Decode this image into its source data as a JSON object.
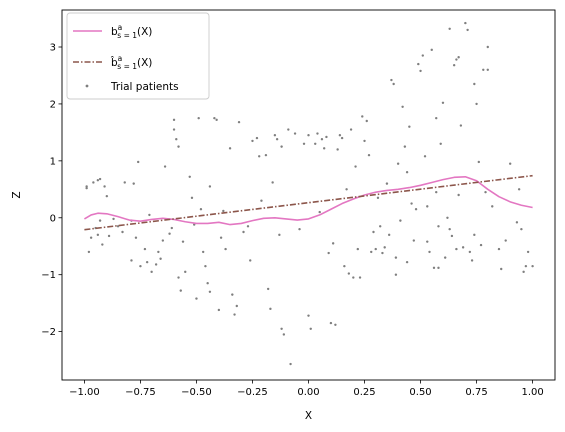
{
  "chart_data": {
    "type": "line",
    "title": "",
    "xlabel": "X",
    "ylabel": "Z",
    "xlim": [
      -1.1,
      1.1
    ],
    "ylim": [
      -2.85,
      3.65
    ],
    "xticks": [
      -1.0,
      -0.75,
      -0.5,
      -0.25,
      0.0,
      0.25,
      0.5,
      0.75,
      1.0
    ],
    "xtick_labels": [
      "−1.00",
      "−0.75",
      "−0.50",
      "−0.25",
      "0.00",
      "0.25",
      "0.50",
      "0.75",
      "1.00"
    ],
    "yticks": [
      -2,
      -1,
      0,
      1,
      2,
      3
    ],
    "ytick_labels": [
      "−2",
      "−1",
      "0",
      "1",
      "2",
      "3"
    ],
    "grid": false,
    "legend_position": "top-left",
    "series": [
      {
        "name": "b^a_{s=1}(X)",
        "kind": "line",
        "style": "solid",
        "color": "#e377c2",
        "x": [
          -1.0,
          -0.97,
          -0.94,
          -0.9,
          -0.85,
          -0.8,
          -0.75,
          -0.7,
          -0.65,
          -0.6,
          -0.55,
          -0.5,
          -0.45,
          -0.4,
          -0.35,
          -0.3,
          -0.25,
          -0.2,
          -0.15,
          -0.1,
          -0.05,
          0.0,
          0.05,
          0.1,
          0.15,
          0.2,
          0.25,
          0.3,
          0.35,
          0.4,
          0.45,
          0.5,
          0.55,
          0.6,
          0.65,
          0.7,
          0.75,
          0.8,
          0.85,
          0.9,
          0.95,
          1.0
        ],
        "y": [
          -0.02,
          0.05,
          0.08,
          0.07,
          0.02,
          -0.04,
          -0.06,
          -0.03,
          -0.01,
          -0.03,
          -0.07,
          -0.1,
          -0.1,
          -0.08,
          -0.12,
          -0.1,
          -0.05,
          -0.01,
          0.0,
          -0.02,
          -0.04,
          -0.02,
          0.05,
          0.15,
          0.25,
          0.33,
          0.4,
          0.45,
          0.48,
          0.5,
          0.53,
          0.57,
          0.62,
          0.67,
          0.71,
          0.72,
          0.65,
          0.5,
          0.37,
          0.28,
          0.22,
          0.18
        ]
      },
      {
        "name": "b̂^a_{s=1}(X)",
        "kind": "line",
        "style": "dashdot",
        "color": "#8c564b",
        "x": [
          -1.0,
          1.0
        ],
        "y": [
          -0.21,
          0.74
        ]
      },
      {
        "name": "Trial patients",
        "kind": "scatter",
        "color": "#7f7f7f",
        "points": [
          [
            -0.99,
            0.55
          ],
          [
            -0.99,
            0.52
          ],
          [
            -0.96,
            0.62
          ],
          [
            -0.94,
            0.66
          ],
          [
            -0.93,
            0.68
          ],
          [
            -0.91,
            0.55
          ],
          [
            -0.9,
            0.38
          ],
          [
            -0.93,
            -0.05
          ],
          [
            -0.95,
            -0.18
          ],
          [
            -0.94,
            -0.3
          ],
          [
            -0.92,
            -0.47
          ],
          [
            -0.98,
            -0.6
          ],
          [
            -0.89,
            -0.32
          ],
          [
            -0.85,
            -0.15
          ],
          [
            -0.82,
            0.62
          ],
          [
            -0.78,
            0.6
          ],
          [
            -0.76,
            0.98
          ],
          [
            -0.79,
            -0.05
          ],
          [
            -0.79,
            -0.75
          ],
          [
            -0.77,
            -0.35
          ],
          [
            -0.75,
            -0.85
          ],
          [
            -0.73,
            -0.55
          ],
          [
            -0.72,
            -0.78
          ],
          [
            -0.7,
            -0.95
          ],
          [
            -0.68,
            -0.82
          ],
          [
            -0.67,
            -0.6
          ],
          [
            -0.65,
            -0.4
          ],
          [
            -0.64,
            0.9
          ],
          [
            -0.62,
            -0.28
          ],
          [
            -0.61,
            -0.18
          ],
          [
            -0.6,
            1.72
          ],
          [
            -0.6,
            1.55
          ],
          [
            -0.59,
            1.38
          ],
          [
            -0.58,
            1.25
          ],
          [
            -0.58,
            -1.05
          ],
          [
            -0.57,
            -1.28
          ],
          [
            -0.55,
            -0.95
          ],
          [
            -0.52,
            0.35
          ],
          [
            -0.51,
            -0.12
          ],
          [
            -0.5,
            -1.42
          ],
          [
            -0.49,
            1.75
          ],
          [
            -0.47,
            -0.6
          ],
          [
            -0.46,
            -0.85
          ],
          [
            -0.45,
            -1.15
          ],
          [
            -0.44,
            -1.3
          ],
          [
            -0.42,
            1.75
          ],
          [
            -0.41,
            1.72
          ],
          [
            -0.4,
            -1.62
          ],
          [
            -0.38,
            0.12
          ],
          [
            -0.37,
            -0.55
          ],
          [
            -0.35,
            1.22
          ],
          [
            -0.34,
            -1.35
          ],
          [
            -0.33,
            -1.7
          ],
          [
            -0.32,
            -1.55
          ],
          [
            -0.31,
            1.68
          ],
          [
            -0.29,
            -0.25
          ],
          [
            -0.27,
            -0.15
          ],
          [
            -0.25,
            1.35
          ],
          [
            -0.23,
            1.4
          ],
          [
            -0.22,
            1.08
          ],
          [
            -0.19,
            1.1
          ],
          [
            -0.18,
            -1.25
          ],
          [
            -0.17,
            -1.6
          ],
          [
            -0.15,
            1.45
          ],
          [
            -0.14,
            1.38
          ],
          [
            -0.12,
            1.25
          ],
          [
            -0.12,
            -1.95
          ],
          [
            -0.11,
            -2.05
          ],
          [
            -0.09,
            1.55
          ],
          [
            -0.08,
            -2.57
          ],
          [
            -0.06,
            1.48
          ],
          [
            -0.04,
            -0.2
          ],
          [
            -0.02,
            1.3
          ],
          [
            0.0,
            1.45
          ],
          [
            0.0,
            -1.72
          ],
          [
            0.01,
            -1.95
          ],
          [
            0.03,
            1.3
          ],
          [
            0.04,
            1.48
          ],
          [
            0.06,
            1.38
          ],
          [
            0.07,
            1.22
          ],
          [
            0.08,
            1.42
          ],
          [
            0.09,
            -0.62
          ],
          [
            0.1,
            -1.85
          ],
          [
            0.12,
            -1.88
          ],
          [
            0.13,
            1.2
          ],
          [
            0.14,
            1.45
          ],
          [
            0.15,
            1.4
          ],
          [
            0.16,
            -0.85
          ],
          [
            0.18,
            -0.98
          ],
          [
            0.19,
            1.55
          ],
          [
            0.2,
            -1.05
          ],
          [
            0.22,
            -0.55
          ],
          [
            0.23,
            -1.05
          ],
          [
            0.24,
            1.78
          ],
          [
            0.25,
            1.35
          ],
          [
            0.26,
            1.7
          ],
          [
            0.27,
            1.1
          ],
          [
            0.28,
            -0.6
          ],
          [
            0.3,
            -0.55
          ],
          [
            0.31,
            0.35
          ],
          [
            0.32,
            -0.15
          ],
          [
            0.33,
            -0.62
          ],
          [
            0.34,
            -0.52
          ],
          [
            0.36,
            -0.3
          ],
          [
            0.37,
            2.42
          ],
          [
            0.38,
            2.35
          ],
          [
            0.39,
            -0.7
          ],
          [
            0.4,
            0.95
          ],
          [
            0.41,
            -0.05
          ],
          [
            0.42,
            1.95
          ],
          [
            0.43,
            1.25
          ],
          [
            0.44,
            -0.78
          ],
          [
            0.45,
            1.6
          ],
          [
            0.46,
            0.25
          ],
          [
            0.47,
            -0.4
          ],
          [
            0.48,
            0.15
          ],
          [
            0.49,
            2.7
          ],
          [
            0.5,
            2.58
          ],
          [
            0.51,
            2.85
          ],
          [
            0.52,
            1.08
          ],
          [
            0.53,
            -0.42
          ],
          [
            0.54,
            -0.6
          ],
          [
            0.55,
            2.95
          ],
          [
            0.56,
            -0.88
          ],
          [
            0.57,
            1.75
          ],
          [
            0.58,
            -0.15
          ],
          [
            0.59,
            1.3
          ],
          [
            0.6,
            2.02
          ],
          [
            0.61,
            -0.7
          ],
          [
            0.62,
            0.0
          ],
          [
            0.63,
            3.32
          ],
          [
            0.64,
            -0.32
          ],
          [
            0.65,
            2.68
          ],
          [
            0.66,
            2.78
          ],
          [
            0.67,
            2.82
          ],
          [
            0.68,
            1.62
          ],
          [
            0.69,
            -0.52
          ],
          [
            0.7,
            3.42
          ],
          [
            0.71,
            3.3
          ],
          [
            0.72,
            -0.6
          ],
          [
            0.73,
            -0.75
          ],
          [
            0.74,
            2.35
          ],
          [
            0.75,
            2.0
          ],
          [
            0.76,
            0.98
          ],
          [
            0.77,
            -0.48
          ],
          [
            0.78,
            2.6
          ],
          [
            0.8,
            2.6
          ],
          [
            0.8,
            3.0
          ],
          [
            0.85,
            -0.55
          ],
          [
            0.86,
            -0.9
          ],
          [
            0.9,
            0.95
          ],
          [
            0.93,
            -0.08
          ],
          [
            0.95,
            -0.2
          ],
          [
            0.96,
            -0.95
          ],
          [
            0.97,
            -0.85
          ],
          [
            0.98,
            -0.6
          ],
          [
            1.0,
            -0.85
          ],
          [
            -0.87,
            -0.02
          ],
          [
            -0.83,
            -0.25
          ],
          [
            -0.66,
            -0.72
          ],
          [
            -0.56,
            -0.42
          ],
          [
            -0.48,
            0.15
          ],
          [
            -0.39,
            -0.35
          ],
          [
            -0.21,
            0.3
          ],
          [
            -0.13,
            -0.3
          ],
          [
            0.05,
            0.1
          ],
          [
            0.17,
            0.5
          ],
          [
            0.29,
            -0.25
          ],
          [
            0.35,
            0.6
          ],
          [
            0.44,
            0.8
          ],
          [
            0.53,
            0.2
          ],
          [
            0.57,
            0.45
          ],
          [
            0.63,
            -0.2
          ],
          [
            0.67,
            0.4
          ],
          [
            0.74,
            -0.3
          ],
          [
            0.82,
            0.2
          ],
          [
            0.88,
            -0.4
          ],
          [
            0.94,
            0.5
          ],
          [
            -0.97,
            -0.35
          ],
          [
            -0.71,
            0.05
          ],
          [
            -0.53,
            0.72
          ],
          [
            -0.44,
            0.55
          ],
          [
            -0.26,
            -0.75
          ],
          [
            -0.16,
            0.62
          ],
          [
            0.11,
            -0.45
          ],
          [
            0.21,
            0.9
          ],
          [
            0.39,
            -1.0
          ],
          [
            0.58,
            -0.88
          ],
          [
            0.66,
            -0.55
          ],
          [
            0.79,
            0.45
          ]
        ]
      }
    ]
  }
}
